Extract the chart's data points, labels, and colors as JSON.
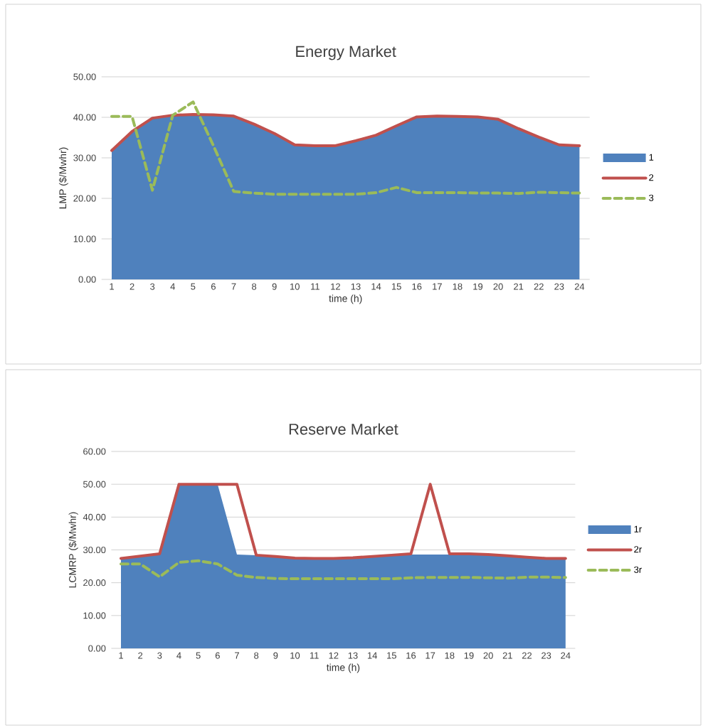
{
  "chart_data": [
    {
      "type": "area",
      "title": "Energy Market",
      "xlabel": "time (h)",
      "ylabel": "LMP ($/Mwhr)",
      "categories": [
        "1",
        "2",
        "3",
        "4",
        "5",
        "6",
        "7",
        "8",
        "9",
        "10",
        "11",
        "12",
        "13",
        "14",
        "15",
        "16",
        "17",
        "18",
        "19",
        "20",
        "21",
        "22",
        "23",
        "24"
      ],
      "series": [
        {
          "name": "1",
          "color": "#4f81bd",
          "values": [
            31.8,
            36.5,
            39.8,
            40.5,
            40.7,
            40.6,
            40.3,
            38.3,
            36.0,
            33.2,
            33.0,
            33.0,
            34.2,
            35.6,
            37.9,
            40.1,
            40.3,
            40.2,
            40.1,
            39.5,
            37.2,
            35.1,
            33.2,
            33.0
          ]
        },
        {
          "name": "2",
          "type": "line",
          "color": "#c0504d",
          "line_style": "solid",
          "values": [
            31.8,
            36.5,
            39.8,
            40.5,
            40.7,
            40.6,
            40.3,
            38.3,
            36.0,
            33.2,
            33.0,
            33.0,
            34.2,
            35.6,
            37.9,
            40.1,
            40.3,
            40.2,
            40.1,
            39.5,
            37.2,
            35.1,
            33.2,
            33.0
          ]
        },
        {
          "name": "3",
          "type": "line",
          "color": "#9bbb59",
          "line_style": "dashed",
          "values": [
            40.2,
            40.2,
            22.0,
            40.5,
            43.8,
            33.0,
            21.7,
            21.3,
            21.0,
            21.0,
            21.0,
            21.0,
            21.0,
            21.4,
            22.7,
            21.4,
            21.4,
            21.4,
            21.3,
            21.3,
            21.2,
            21.5,
            21.4,
            21.3
          ]
        }
      ],
      "ylim": [
        0,
        50
      ],
      "yticks": [
        {
          "value": 0,
          "label": "0.00"
        },
        {
          "value": 10,
          "label": "10.00"
        },
        {
          "value": 20,
          "label": "20.00"
        },
        {
          "value": 30,
          "label": "30.00"
        },
        {
          "value": 40,
          "label": "40.00"
        },
        {
          "value": 50,
          "label": "50.00"
        }
      ],
      "grid": "y",
      "legend": "right"
    },
    {
      "type": "area",
      "title": "Reserve Market",
      "xlabel": "time (h)",
      "ylabel": "LCMRP ($/Mwhr)",
      "categories": [
        "1",
        "2",
        "3",
        "4",
        "5",
        "6",
        "7",
        "8",
        "9",
        "10",
        "11",
        "12",
        "13",
        "14",
        "15",
        "16",
        "17",
        "18",
        "19",
        "20",
        "21",
        "22",
        "23",
        "24"
      ],
      "series": [
        {
          "name": "1r",
          "color": "#4f81bd",
          "values": [
            27.4,
            28.1,
            28.8,
            50,
            50,
            50,
            28.6,
            28.4,
            28.0,
            27.5,
            27.4,
            27.4,
            27.6,
            28.0,
            28.4,
            28.6,
            28.6,
            28.6,
            28.6,
            28.6,
            28.2,
            27.8,
            27.4,
            27.4
          ]
        },
        {
          "name": "2r",
          "type": "line",
          "color": "#c0504d",
          "line_style": "solid",
          "values": [
            27.4,
            28.1,
            28.8,
            50,
            50,
            50,
            50,
            28.4,
            28.0,
            27.5,
            27.4,
            27.4,
            27.6,
            28.0,
            28.4,
            28.8,
            50,
            28.8,
            28.8,
            28.6,
            28.2,
            27.8,
            27.4,
            27.4
          ]
        },
        {
          "name": "3r",
          "type": "line",
          "color": "#9bbb59",
          "line_style": "dashed",
          "values": [
            25.7,
            25.7,
            21.8,
            26.2,
            26.7,
            25.7,
            22.3,
            21.6,
            21.3,
            21.2,
            21.2,
            21.2,
            21.2,
            21.2,
            21.2,
            21.5,
            21.6,
            21.6,
            21.6,
            21.5,
            21.4,
            21.7,
            21.7,
            21.6
          ]
        }
      ],
      "ylim": [
        0,
        60
      ],
      "yticks": [
        {
          "value": 0,
          "label": "0.00"
        },
        {
          "value": 10,
          "label": "10.00"
        },
        {
          "value": 20,
          "label": "20.00"
        },
        {
          "value": 30,
          "label": "30.00"
        },
        {
          "value": 40,
          "label": "40.00"
        },
        {
          "value": 50,
          "label": "50.00"
        },
        {
          "value": 60,
          "label": "60.00"
        }
      ],
      "grid": "y",
      "legend": "right"
    }
  ]
}
